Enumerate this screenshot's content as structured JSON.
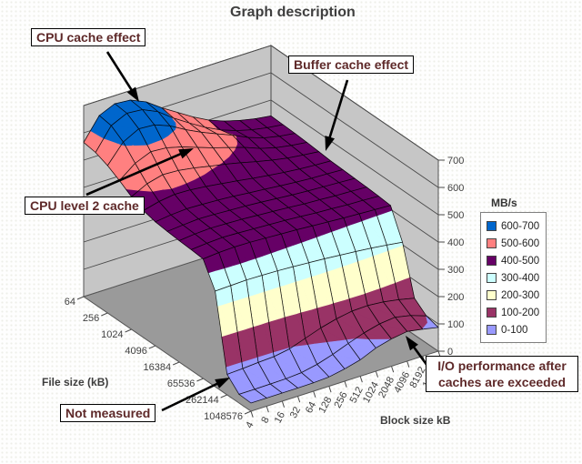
{
  "chart_data": {
    "type": "surface",
    "title": "Graph description",
    "x_axis_title": "Block size kB",
    "y_axis_title": "File size (kB)",
    "unit": "MB/s",
    "zlim": [
      0,
      700
    ],
    "z_ticks": [
      0,
      100,
      200,
      300,
      400,
      500,
      600,
      700
    ],
    "x_categories": [
      4,
      8,
      16,
      32,
      64,
      128,
      256,
      512,
      1024,
      2048,
      4096,
      8192,
      16384
    ],
    "y_categories": [
      64,
      128,
      256,
      512,
      1024,
      2048,
      4096,
      8192,
      16384,
      32768,
      65536,
      131072,
      262144,
      524288,
      1048576
    ],
    "y_tick_labels": [
      "64",
      "256",
      "1024",
      "4096",
      "16384",
      "65536",
      "262144",
      "1048576"
    ],
    "values": [
      [
        565,
        645,
        670,
        665,
        640,
        600,
        565,
        530,
        500,
        478,
        462,
        450,
        442
      ],
      [
        558,
        638,
        665,
        660,
        634,
        592,
        556,
        522,
        494,
        473,
        458,
        447,
        440
      ],
      [
        540,
        608,
        638,
        634,
        612,
        580,
        552,
        528,
        505,
        478,
        458,
        446,
        438
      ],
      [
        515,
        560,
        584,
        580,
        565,
        545,
        525,
        508,
        490,
        468,
        452,
        442,
        435
      ],
      [
        486,
        515,
        530,
        527,
        518,
        506,
        495,
        482,
        468,
        455,
        444,
        437,
        431
      ],
      [
        465,
        480,
        488,
        486,
        480,
        472,
        464,
        455,
        447,
        440,
        434,
        430,
        427
      ],
      [
        454,
        461,
        465,
        463,
        460,
        456,
        450,
        445,
        439,
        434,
        430,
        428,
        425
      ],
      [
        449,
        454,
        458,
        456,
        453,
        450,
        446,
        441,
        436,
        432,
        429,
        426,
        423
      ],
      [
        445,
        451,
        454,
        452,
        450,
        446,
        442,
        438,
        433,
        430,
        426,
        424,
        421
      ],
      [
        442,
        447,
        450,
        448,
        445,
        442,
        439,
        435,
        430,
        427,
        423,
        421,
        418
      ],
      [
        438,
        443,
        445,
        444,
        441,
        438,
        435,
        431,
        427,
        423,
        420,
        417,
        414
      ],
      [
        350,
        352,
        354,
        353,
        351,
        348,
        344,
        340,
        335,
        330,
        324,
        317,
        309
      ],
      [
        75,
        78,
        82,
        85,
        95,
        115,
        135,
        150,
        160,
        162,
        157,
        147,
        134
      ],
      [
        32,
        32,
        33,
        34,
        38,
        50,
        68,
        90,
        110,
        125,
        131,
        119,
        99
      ],
      [
        30,
        30,
        30,
        30,
        31,
        34,
        45,
        60,
        85,
        100,
        109,
        99,
        87
      ]
    ],
    "legend": {
      "title": "MB/s",
      "position": "right",
      "entries": [
        {
          "label": "600-700",
          "color": "#0066cc"
        },
        {
          "label": "500-600",
          "color": "#ff8080"
        },
        {
          "label": "400-500",
          "color": "#660066"
        },
        {
          "label": "300-400",
          "color": "#ccffff"
        },
        {
          "label": "200-300",
          "color": "#ffffcc"
        },
        {
          "label": "100-200",
          "color": "#993366"
        },
        {
          "label": "0-100",
          "color": "#9999ff"
        }
      ]
    },
    "annotations": [
      {
        "label": "CPU cache effect"
      },
      {
        "label": "Buffer cache effect"
      },
      {
        "label": "CPU level 2 cache"
      },
      {
        "label": "Not measured"
      },
      {
        "label": "I/O performance after caches are exceeded"
      }
    ],
    "wall_color": "#c6c6c6",
    "floor_color": "#9a9a9a"
  }
}
